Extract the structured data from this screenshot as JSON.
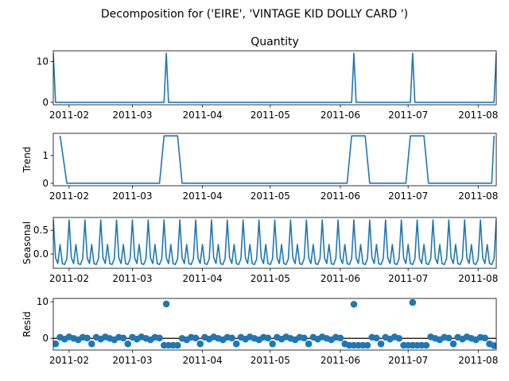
{
  "figure": {
    "suptitle": "Decomposition for ('EIRE', 'VINTAGE KID DOLLY CARD ')"
  },
  "chart_data": [
    {
      "type": "line",
      "title": "Quantity",
      "ylabel": "",
      "xlabel": "",
      "series_color": "#1f77b4",
      "ylim": [
        -0.6,
        12.6
      ],
      "yticks": [
        0,
        10
      ],
      "xlim": [
        "2011-01-25",
        "2011-08-09"
      ],
      "xticks": [
        "2011-02",
        "2011-03",
        "2011-04",
        "2011-05",
        "2011-06",
        "2011-07",
        "2011-08"
      ],
      "x": [
        "2011-01-25",
        "2011-01-26",
        "2011-03-15",
        "2011-03-16",
        "2011-03-17",
        "2011-06-06",
        "2011-06-07",
        "2011-06-08",
        "2011-07-02",
        "2011-07-03",
        "2011-07-04",
        "2011-08-08",
        "2011-08-09"
      ],
      "values": [
        12,
        0,
        0,
        12,
        0,
        0,
        12,
        0,
        0,
        12,
        0,
        0,
        12
      ]
    },
    {
      "type": "line",
      "title": "",
      "ylabel": "Trend",
      "xlabel": "",
      "series_color": "#1f77b4",
      "ylim": [
        -0.09,
        1.8
      ],
      "yticks": [
        0,
        1
      ],
      "xlim": [
        "2011-01-25",
        "2011-08-09"
      ],
      "xticks": [
        "2011-02",
        "2011-03",
        "2011-04",
        "2011-05",
        "2011-06",
        "2011-07",
        "2011-08"
      ],
      "x": [
        "2011-01-28",
        "2011-01-31",
        "2011-03-13",
        "2011-03-15",
        "2011-03-21",
        "2011-03-23",
        "2011-06-04",
        "2011-06-06",
        "2011-06-12",
        "2011-06-14",
        "2011-06-30",
        "2011-07-02",
        "2011-07-08",
        "2011-07-10",
        "2011-08-07",
        "2011-08-08"
      ],
      "values": [
        1.71,
        0,
        0,
        1.71,
        1.71,
        0,
        0,
        1.71,
        1.71,
        0,
        0,
        1.71,
        1.71,
        0,
        0,
        1.71
      ]
    },
    {
      "type": "line",
      "title": "",
      "ylabel": "Seasonal",
      "xlabel": "",
      "series_color": "#1f77b4",
      "ylim": [
        -0.3,
        0.77
      ],
      "yticks": [
        0.0,
        0.5
      ],
      "ytick_labels": [
        "0.0",
        "0.5"
      ],
      "xlim": [
        "2011-01-25",
        "2011-08-09"
      ],
      "xticks": [
        "2011-02",
        "2011-03",
        "2011-04",
        "2011-05",
        "2011-06",
        "2011-07",
        "2011-08"
      ],
      "start": "2011-01-25",
      "period_days": 7,
      "weekly_pattern": [
        0.72,
        -0.08,
        -0.2,
        0.2,
        -0.2,
        -0.22,
        -0.1
      ]
    },
    {
      "type": "scatter",
      "title": "",
      "ylabel": "Resid",
      "xlabel": "",
      "series_color": "#1f77b4",
      "ylim": [
        -3.2,
        10.9
      ],
      "yticks": [
        0,
        10
      ],
      "zero_line": true,
      "xlim": [
        "2011-01-25",
        "2011-08-09"
      ],
      "xticks": [
        "2011-02",
        "2011-03",
        "2011-04",
        "2011-05",
        "2011-06",
        "2011-07",
        "2011-08"
      ],
      "start": "2011-01-26",
      "step_days": 2,
      "end": "2011-08-08",
      "base_pattern": [
        -1.5,
        0.3,
        -0.2,
        0.4,
        0.0,
        -0.4,
        0.3,
        0.1
      ],
      "dips": [
        {
          "from": "2011-03-14",
          "to": "2011-03-21",
          "value": -1.9
        },
        {
          "from": "2011-06-05",
          "to": "2011-06-13",
          "value": -1.9
        },
        {
          "from": "2011-06-29",
          "to": "2011-07-09",
          "value": -1.9
        },
        {
          "from": "2011-08-08",
          "to": "2011-08-09",
          "value": -2.0
        }
      ],
      "spikes": [
        {
          "x": "2011-03-16",
          "value": 9.4
        },
        {
          "x": "2011-06-07",
          "value": 9.3
        },
        {
          "x": "2011-07-03",
          "value": 9.8
        }
      ]
    }
  ]
}
